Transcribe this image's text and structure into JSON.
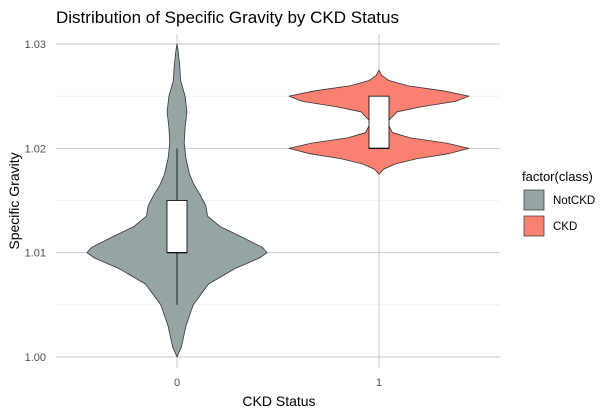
{
  "chart_data": {
    "type": "violin",
    "title": "Distribution of Specific Gravity by CKD Status",
    "xlabel": "CKD Status",
    "ylabel": "Specific Gravity",
    "categories": [
      "0",
      "1"
    ],
    "ylim": [
      1.0,
      1.03
    ],
    "y_ticks": [
      "1.00",
      "1.01",
      "1.02",
      "1.03"
    ],
    "grid": true,
    "legend": {
      "title": "factor(class)",
      "placement": "right",
      "entries": [
        {
          "label": "NotCKD",
          "color": "#95a5a6"
        },
        {
          "label": "CKD",
          "color": "#fa8072"
        }
      ]
    },
    "series": [
      {
        "category": "0",
        "fill_color": "#95a5a6",
        "density_profile": [
          [
            1.0,
            0.0
          ],
          [
            1.001,
            0.05
          ],
          [
            1.003,
            0.1
          ],
          [
            1.005,
            0.18
          ],
          [
            1.007,
            0.35
          ],
          [
            1.0085,
            0.65
          ],
          [
            1.0095,
            0.92
          ],
          [
            1.01,
            1.0
          ],
          [
            1.0105,
            0.95
          ],
          [
            1.0115,
            0.72
          ],
          [
            1.0125,
            0.48
          ],
          [
            1.0135,
            0.34
          ],
          [
            1.0145,
            0.32
          ],
          [
            1.0155,
            0.26
          ],
          [
            1.0165,
            0.19
          ],
          [
            1.0175,
            0.14
          ],
          [
            1.019,
            0.1
          ],
          [
            1.0205,
            0.08
          ],
          [
            1.022,
            0.09
          ],
          [
            1.0235,
            0.11
          ],
          [
            1.025,
            0.09
          ],
          [
            1.0265,
            0.04
          ],
          [
            1.028,
            0.03
          ],
          [
            1.0295,
            0.01
          ],
          [
            1.03,
            0.0
          ]
        ],
        "box": {
          "q1": 1.01,
          "median": 1.01,
          "q3": 1.015,
          "lower_whisker": 1.005,
          "upper_whisker": 1.02
        }
      },
      {
        "category": "1",
        "fill_color": "#fa8072",
        "density_profile": [
          [
            1.0175,
            0.0
          ],
          [
            1.018,
            0.05
          ],
          [
            1.0185,
            0.18
          ],
          [
            1.019,
            0.42
          ],
          [
            1.0195,
            0.78
          ],
          [
            1.02,
            1.0
          ],
          [
            1.0205,
            0.75
          ],
          [
            1.021,
            0.35
          ],
          [
            1.0215,
            0.15
          ],
          [
            1.0225,
            0.09
          ],
          [
            1.0235,
            0.2
          ],
          [
            1.024,
            0.48
          ],
          [
            1.0245,
            0.85
          ],
          [
            1.025,
            1.0
          ],
          [
            1.0255,
            0.72
          ],
          [
            1.026,
            0.32
          ],
          [
            1.0265,
            0.11
          ],
          [
            1.027,
            0.03
          ],
          [
            1.0275,
            0.0
          ]
        ],
        "box": {
          "q1": 1.02,
          "median": 1.02,
          "q3": 1.025,
          "lower_whisker": 1.02,
          "upper_whisker": 1.025
        }
      }
    ]
  }
}
